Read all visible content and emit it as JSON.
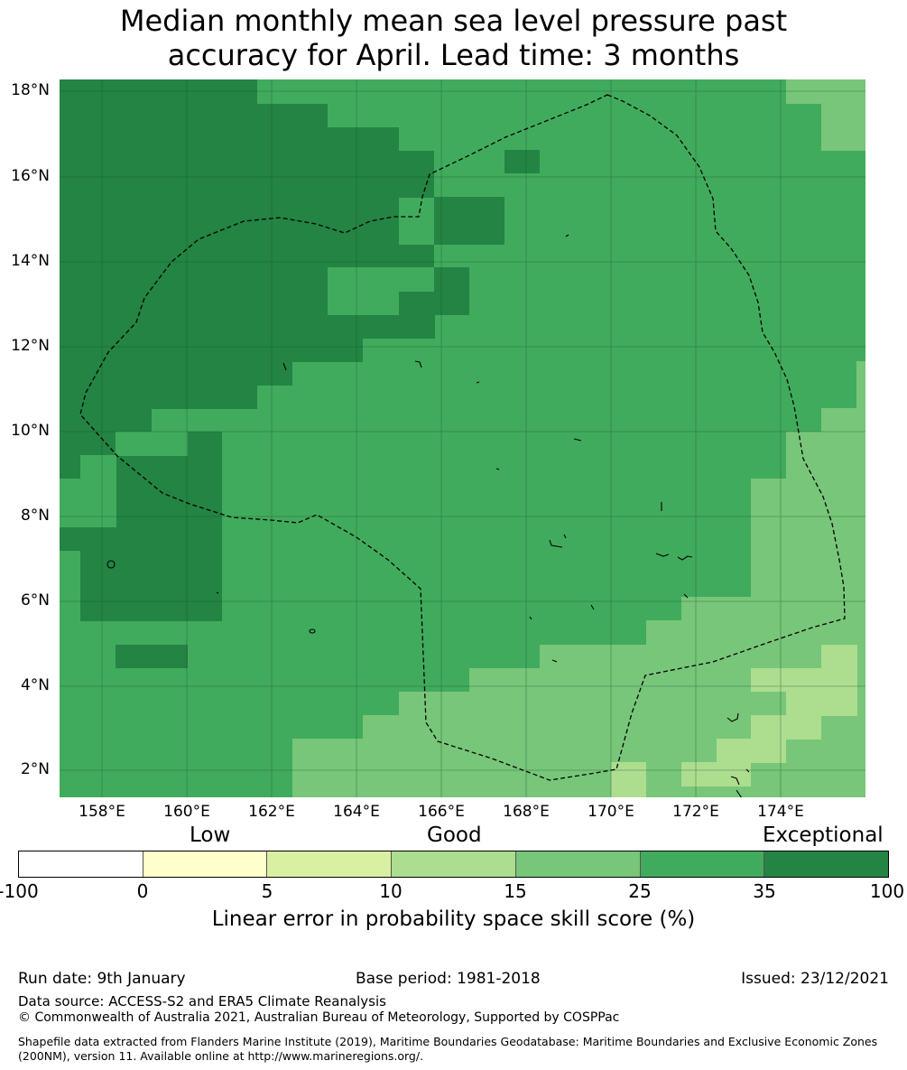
{
  "title": {
    "line1": "Median monthly mean sea level pressure past",
    "line2": "accuracy for April. Lead time: 3 months"
  },
  "map": {
    "lat_labels": [
      "18°N",
      "16°N",
      "14°N",
      "12°N",
      "10°N",
      "8°N",
      "6°N",
      "4°N",
      "2°N"
    ],
    "lon_labels": [
      "158°E",
      "160°E",
      "162°E",
      "164°E",
      "166°E",
      "168°E",
      "170°E",
      "172°E",
      "174°E"
    ],
    "colors": {
      "c35": "#238443",
      "c25": "#41ab5d",
      "c15": "#78c679",
      "c10": "#addd8e",
      "c5": "#d9f0a3",
      "c0": "#ffffcc",
      "cneg": "#ffffff",
      "gridline": "#1a4d2a",
      "boundary": "#000000"
    }
  },
  "colorbar": {
    "categories": [
      "Low",
      "Good",
      "Exceptional"
    ],
    "ticks": [
      "-100",
      "0",
      "5",
      "10",
      "15",
      "25",
      "35",
      "100"
    ],
    "segment_colors": [
      "#ffffff",
      "#ffffcc",
      "#d9f0a3",
      "#addd8e",
      "#78c679",
      "#41ab5d",
      "#238443"
    ],
    "label": "Linear error in probability space skill score (%)"
  },
  "footer": {
    "run_date": "Run date: 9th January",
    "base_period": "Base period: 1981-2018",
    "issued": "Issued: 23/12/2021",
    "data_source": "Data source: ACCESS-S2 and ERA5 Climate Reanalysis",
    "copyright": "© Commonwealth of Australia 2021, Australian Bureau of Meteorology, Supported by COSPPac",
    "shapefile": "Shapefile data extracted from Flanders Marine Institute (2019), Maritime Boundaries Geodatabase: Maritime Boundaries and Exclusive Economic Zones (200NM), version 11. Available online at http://www.marineregions.org/."
  }
}
